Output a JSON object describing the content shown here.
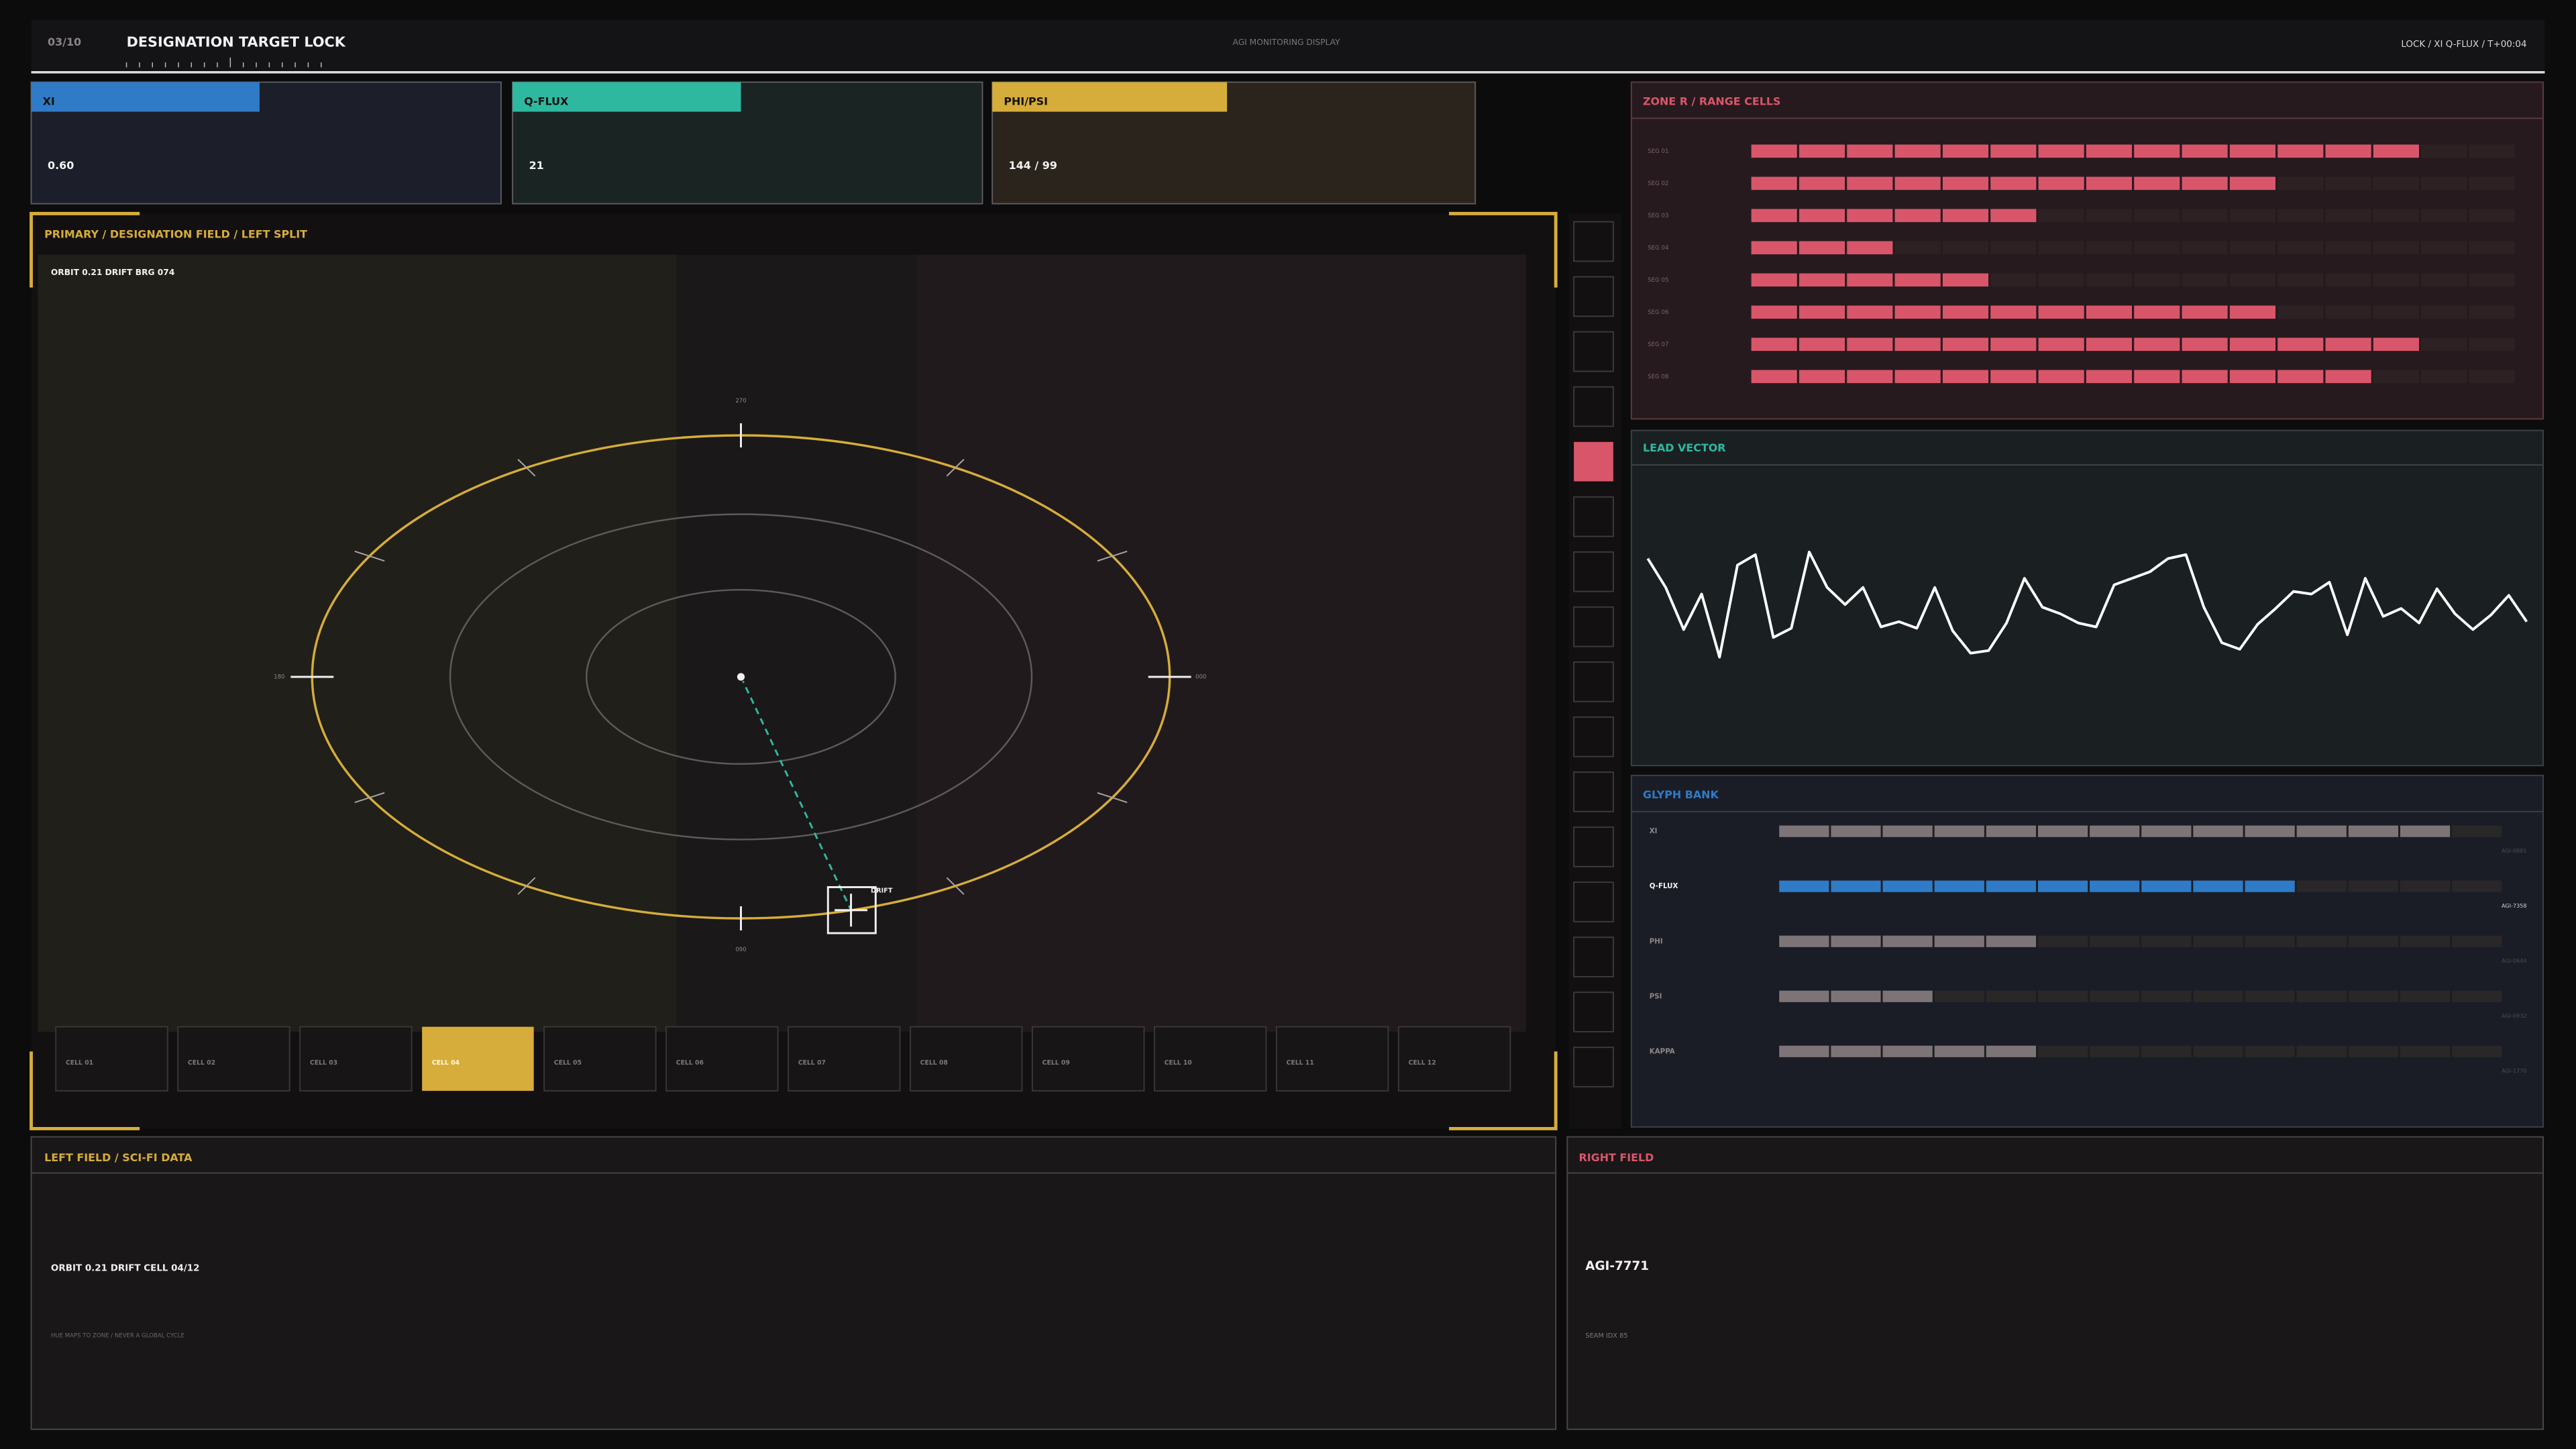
{
  "header": {
    "page": "03/10",
    "title": "DESIGNATION TARGET LOCK",
    "subtitle": "AGI MONITORING DISPLAY",
    "status": "LOCK / XI Q-FLUX / T+00:04"
  },
  "metrics": [
    {
      "label": "XI",
      "value": "0.60",
      "color": "#2f7bc7"
    },
    {
      "label": "Q-FLUX",
      "value": "21",
      "color": "#2fb8a0"
    },
    {
      "label": "PHI/PSI",
      "value": "144 / 99",
      "color": "#d6ad3a"
    }
  ],
  "primary": {
    "title": "PRIMARY / DESIGNATION FIELD / LEFT SPLIT",
    "readout": "ORBIT 0.21  DRIFT  BRG 074",
    "bearings": {
      "top": "270",
      "left": "180",
      "right": "000",
      "bottom": "090"
    },
    "target_label": "DRIFT",
    "cells": [
      {
        "label": "CELL 01",
        "active": false
      },
      {
        "label": "CELL 02",
        "active": false
      },
      {
        "label": "CELL 03",
        "active": false
      },
      {
        "label": "CELL 04",
        "active": true
      },
      {
        "label": "CELL 05",
        "active": false
      },
      {
        "label": "CELL 06",
        "active": false
      },
      {
        "label": "CELL 07",
        "active": false
      },
      {
        "label": "CELL 08",
        "active": false
      },
      {
        "label": "CELL 09",
        "active": false
      },
      {
        "label": "CELL 10",
        "active": false
      },
      {
        "label": "CELL 11",
        "active": false
      },
      {
        "label": "CELL 12",
        "active": false
      }
    ]
  },
  "zone_r": {
    "title": "ZONE R  /  RANGE CELLS",
    "segments": 16,
    "color": "#d9566a",
    "rows": [
      {
        "label": "SEG 01",
        "value": 14
      },
      {
        "label": "SEG 02",
        "value": 11
      },
      {
        "label": "SEG 03",
        "value": 6
      },
      {
        "label": "SEG 04",
        "value": 3
      },
      {
        "label": "SEG 05",
        "value": 5
      },
      {
        "label": "SEG 06",
        "value": 11
      },
      {
        "label": "SEG 07",
        "value": 14
      },
      {
        "label": "SEG 08",
        "value": 13
      }
    ]
  },
  "lead_vector": {
    "title": "LEAD VECTOR",
    "color": "#ffffff",
    "values": [
      88,
      66,
      34,
      61,
      13,
      83,
      91,
      28,
      35,
      93,
      66,
      53,
      66,
      36,
      40,
      35,
      66,
      33,
      16,
      18,
      39,
      73,
      51,
      46,
      39,
      36,
      68,
      73,
      78,
      88,
      91,
      51,
      24,
      19,
      38,
      50,
      63,
      61,
      70,
      30,
      73,
      44,
      50,
      39,
      65,
      46,
      34,
      45,
      60,
      40
    ]
  },
  "glyph_bank": {
    "title": "GLYPH BANK",
    "segments": 14,
    "rows": [
      {
        "label": "XI",
        "value": 13,
        "code": "AGI-0881",
        "color": "#7d7477",
        "active": false
      },
      {
        "label": "Q-FLUX",
        "value": 10,
        "code": "AGI-7358",
        "color": "#2f7bc7",
        "active": true
      },
      {
        "label": "PHI",
        "value": 5,
        "code": "AGI-0644",
        "color": "#7d7477",
        "active": false
      },
      {
        "label": "PSI",
        "value": 3,
        "code": "AGI-0932",
        "color": "#7d7477",
        "active": false
      },
      {
        "label": "KAPPA",
        "value": 5,
        "code": "AGI-1770",
        "color": "#7d7477",
        "active": false
      }
    ]
  },
  "left_field": {
    "title": "LEFT FIELD  /  SCI-FI DATA",
    "readout": "ORBIT 0.21  DRIFT  CELL 04/12",
    "note": "HUE MAPS TO ZONE  /  NEVER A GLOBAL CYCLE"
  },
  "right_field": {
    "title": "RIGHT FIELD",
    "id": "AGI-7771",
    "seam": "SEAM IDX 85"
  }
}
